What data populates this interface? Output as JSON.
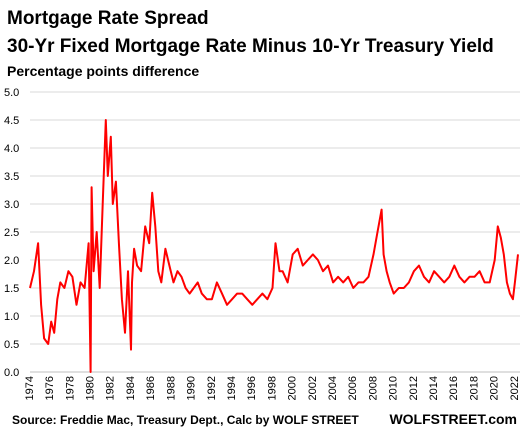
{
  "header": {
    "title": "Mortgage Rate Spread",
    "subtitle": "30-Yr Fixed Mortgage Rate Minus 10-Yr Treasury Yield",
    "unit_label": "Percentage points difference"
  },
  "footer": {
    "source": "Source: Freddie Mac, Treasury Dept., Calc by WOLF STREET",
    "brand": "WOLFSTREET.com"
  },
  "chart_data": {
    "type": "line",
    "title": "Mortgage Rate Spread",
    "subtitle": "30-Yr Fixed Mortgage Rate Minus 10-Yr Treasury Yield",
    "ylabel": "Percentage points difference",
    "ylim": [
      0,
      5
    ],
    "xlim": [
      1974,
      2022.5
    ],
    "y_ticks": [
      "0.0",
      "0.5",
      "1.0",
      "1.5",
      "2.0",
      "2.5",
      "3.0",
      "3.5",
      "4.0",
      "4.5",
      "5.0"
    ],
    "x_ticks": [
      "1974",
      "1976",
      "1978",
      "1980",
      "1982",
      "1984",
      "1986",
      "1988",
      "1990",
      "1992",
      "1994",
      "1996",
      "1998",
      "2000",
      "2002",
      "2004",
      "2006",
      "2008",
      "2010",
      "2012",
      "2014",
      "2016",
      "2018",
      "2020",
      "2022"
    ],
    "grid": "horizontal",
    "legend": "none",
    "line_color": "#ff0000",
    "series": [
      {
        "x": [
          1974.0,
          1974.4,
          1974.8,
          1975.1,
          1975.4,
          1975.8,
          1976.1,
          1976.4,
          1976.7,
          1977.0,
          1977.4,
          1977.8,
          1978.2,
          1978.6,
          1979.0,
          1979.4,
          1979.8,
          1980.0,
          1980.1,
          1980.3,
          1980.6,
          1980.9,
          1981.2,
          1981.5,
          1981.7,
          1982.0,
          1982.2,
          1982.5,
          1982.8,
          1983.1,
          1983.4,
          1983.7,
          1984.0,
          1984.1,
          1984.3,
          1984.6,
          1985.0,
          1985.4,
          1985.8,
          1986.1,
          1986.4,
          1986.7,
          1987.0,
          1987.4,
          1987.8,
          1988.2,
          1988.6,
          1989.0,
          1989.4,
          1989.8,
          1990.2,
          1990.6,
          1991.0,
          1991.5,
          1992.0,
          1992.5,
          1993.0,
          1993.5,
          1994.0,
          1994.5,
          1995.0,
          1995.5,
          1996.0,
          1996.5,
          1997.0,
          1997.5,
          1998.0,
          1998.3,
          1998.7,
          1999.0,
          1999.5,
          2000.0,
          2000.5,
          2001.0,
          2001.5,
          2002.0,
          2002.5,
          2003.0,
          2003.5,
          2004.0,
          2004.5,
          2005.0,
          2005.5,
          2006.0,
          2006.5,
          2007.0,
          2007.5,
          2008.0,
          2008.4,
          2008.8,
          2009.0,
          2009.3,
          2009.6,
          2010.0,
          2010.5,
          2011.0,
          2011.5,
          2012.0,
          2012.5,
          2013.0,
          2013.5,
          2014.0,
          2014.5,
          2015.0,
          2015.5,
          2016.0,
          2016.5,
          2017.0,
          2017.5,
          2018.0,
          2018.5,
          2019.0,
          2019.5,
          2020.0,
          2020.3,
          2020.6,
          2020.9,
          2021.2,
          2021.5,
          2021.8,
          2022.0,
          2022.3
        ],
        "values": [
          1.5,
          1.8,
          2.3,
          1.2,
          0.6,
          0.5,
          0.9,
          0.7,
          1.3,
          1.6,
          1.5,
          1.8,
          1.7,
          1.2,
          1.6,
          1.5,
          2.3,
          0.0,
          3.3,
          1.8,
          2.5,
          1.5,
          3.0,
          4.5,
          3.5,
          4.2,
          3.0,
          3.4,
          2.3,
          1.3,
          0.7,
          1.8,
          0.4,
          1.6,
          2.2,
          1.9,
          1.8,
          2.6,
          2.3,
          3.2,
          2.6,
          1.8,
          1.6,
          2.2,
          1.9,
          1.6,
          1.8,
          1.7,
          1.5,
          1.4,
          1.5,
          1.6,
          1.4,
          1.3,
          1.3,
          1.6,
          1.4,
          1.2,
          1.3,
          1.4,
          1.4,
          1.3,
          1.2,
          1.3,
          1.4,
          1.3,
          1.5,
          2.3,
          1.8,
          1.8,
          1.6,
          2.1,
          2.2,
          1.9,
          2.0,
          2.1,
          2.0,
          1.8,
          1.9,
          1.6,
          1.7,
          1.6,
          1.7,
          1.5,
          1.6,
          1.6,
          1.7,
          2.1,
          2.5,
          2.9,
          2.1,
          1.8,
          1.6,
          1.4,
          1.5,
          1.5,
          1.6,
          1.8,
          1.9,
          1.7,
          1.6,
          1.8,
          1.7,
          1.6,
          1.7,
          1.9,
          1.7,
          1.6,
          1.7,
          1.7,
          1.8,
          1.6,
          1.6,
          2.0,
          2.6,
          2.4,
          2.1,
          1.6,
          1.4,
          1.3,
          1.6,
          2.1
        ]
      }
    ]
  }
}
